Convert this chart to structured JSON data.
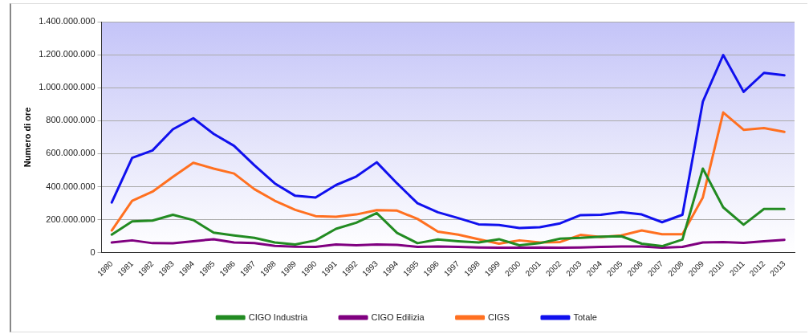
{
  "chart_data": {
    "type": "line",
    "ylabel": "Numero di ore",
    "categories": [
      "1980",
      "1981",
      "1982",
      "1983",
      "1984",
      "1985",
      "1986",
      "1987",
      "1988",
      "1989",
      "1990",
      "1991",
      "1992",
      "1993",
      "1994",
      "1995",
      "1996",
      "1997",
      "1998",
      "1999",
      "2000",
      "2001",
      "2002",
      "2003",
      "2004",
      "2005",
      "2006",
      "2007",
      "2008",
      "2009",
      "2010",
      "2011",
      "2012",
      "2013"
    ],
    "series": [
      {
        "name": "CIGO Industria",
        "color": "#228b22",
        "values": [
          110000000,
          190000000,
          195000000,
          230000000,
          198000000,
          122000000,
          105000000,
          90000000,
          62000000,
          50000000,
          75000000,
          145000000,
          182000000,
          240000000,
          120000000,
          58000000,
          80000000,
          70000000,
          62000000,
          82000000,
          45000000,
          58000000,
          85000000,
          90000000,
          98000000,
          100000000,
          55000000,
          40000000,
          80000000,
          510000000,
          275000000,
          170000000,
          265000000,
          265000000
        ]
      },
      {
        "name": "CIGO Edilizia",
        "color": "#800080",
        "values": [
          62000000,
          75000000,
          58000000,
          57000000,
          70000000,
          82000000,
          62000000,
          58000000,
          42000000,
          37000000,
          35000000,
          50000000,
          45000000,
          50000000,
          48000000,
          35000000,
          38000000,
          35000000,
          32000000,
          30000000,
          30000000,
          32000000,
          30000000,
          32000000,
          35000000,
          38000000,
          38000000,
          30000000,
          35000000,
          62000000,
          65000000,
          60000000,
          70000000,
          78000000
        ]
      },
      {
        "name": "CIGS",
        "color": "#ff7020",
        "values": [
          135000000,
          315000000,
          370000000,
          460000000,
          545000000,
          510000000,
          480000000,
          385000000,
          315000000,
          260000000,
          222000000,
          218000000,
          232000000,
          258000000,
          255000000,
          205000000,
          128000000,
          110000000,
          82000000,
          55000000,
          75000000,
          62000000,
          65000000,
          108000000,
          95000000,
          105000000,
          135000000,
          112000000,
          112000000,
          335000000,
          850000000,
          745000000,
          755000000,
          732000000
        ]
      },
      {
        "name": "Totale",
        "color": "#1010ee",
        "values": [
          305000000,
          575000000,
          620000000,
          748000000,
          815000000,
          720000000,
          648000000,
          530000000,
          420000000,
          345000000,
          335000000,
          410000000,
          462000000,
          548000000,
          420000000,
          300000000,
          245000000,
          210000000,
          172000000,
          168000000,
          150000000,
          155000000,
          178000000,
          228000000,
          230000000,
          246000000,
          232000000,
          185000000,
          230000000,
          915000000,
          1198000000,
          975000000,
          1090000000,
          1075000000
        ]
      }
    ],
    "ylim": [
      0,
      1400000000
    ],
    "yticks": [
      {
        "value": 0,
        "label": "0"
      },
      {
        "value": 200000000,
        "label": "200.000.000"
      },
      {
        "value": 400000000,
        "label": "400.000.000"
      },
      {
        "value": 600000000,
        "label": "600.000.000"
      },
      {
        "value": 800000000,
        "label": "800.000.000"
      },
      {
        "value": 1000000000,
        "label": "1.000.000.000"
      },
      {
        "value": 1200000000,
        "label": "1.200.000.000"
      },
      {
        "value": 1400000000,
        "label": "1.400.000.000"
      }
    ],
    "grid": "y",
    "legend": "bottom",
    "marker": "none",
    "line_style": "solid"
  }
}
